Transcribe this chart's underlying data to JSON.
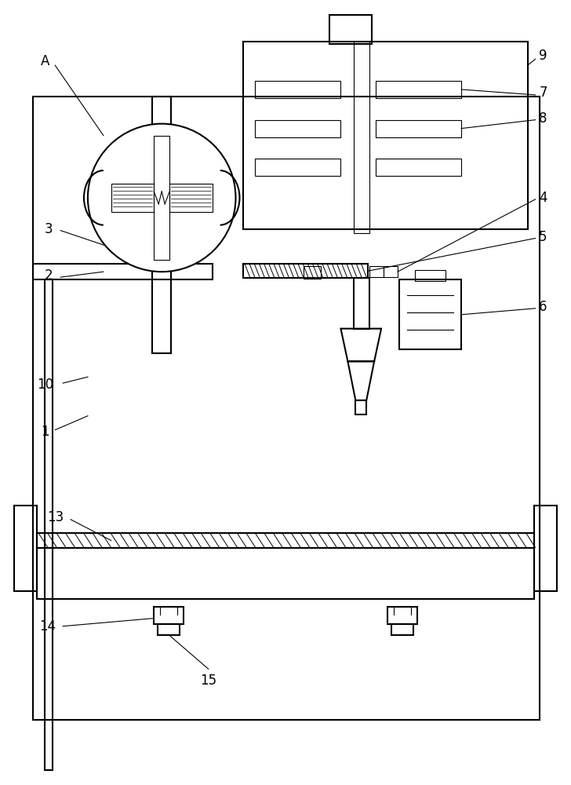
{
  "bg_color": "#ffffff",
  "line_color": "#000000",
  "lw": 1.5,
  "tlw": 0.8,
  "label_fontsize": 12
}
